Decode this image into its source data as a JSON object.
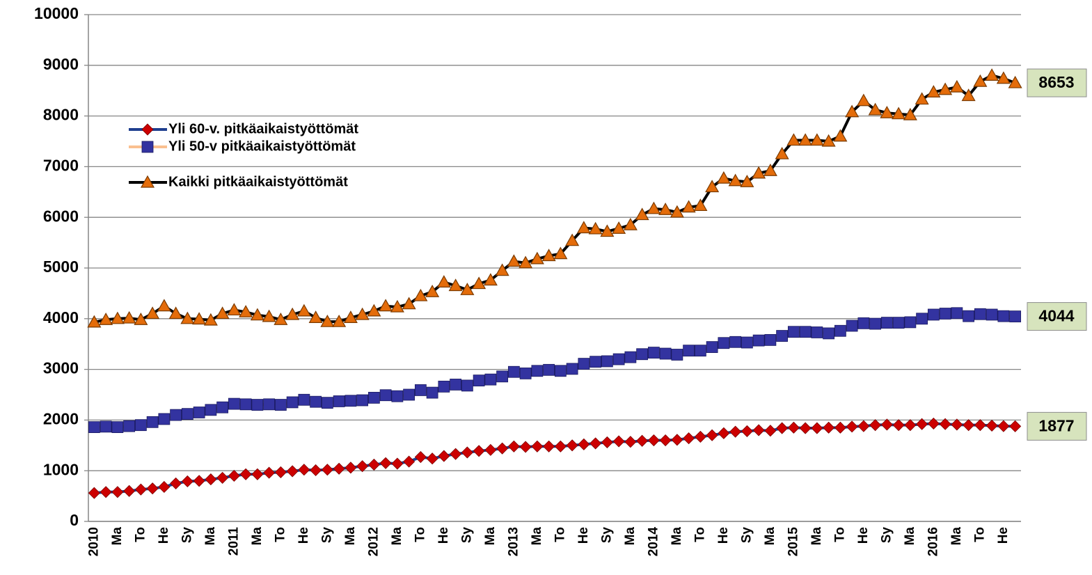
{
  "chart_data": {
    "type": "line",
    "categories": [
      "2010",
      null,
      "Ma",
      null,
      "To",
      null,
      "He",
      null,
      "Sy",
      null,
      "Ma",
      null,
      "2011",
      null,
      "Ma",
      null,
      "To",
      null,
      "He",
      null,
      "Sy",
      null,
      "Ma",
      null,
      "2012",
      null,
      "Ma",
      null,
      "To",
      null,
      "He",
      null,
      "Sy",
      null,
      "Ma",
      null,
      "2013",
      null,
      "Ma",
      null,
      "To",
      null,
      "He",
      null,
      "Sy",
      null,
      "Ma",
      null,
      "2014",
      null,
      "Ma",
      null,
      "To",
      null,
      "He",
      null,
      "Sy",
      null,
      "Ma",
      null,
      "2015",
      null,
      "Ma",
      null,
      "To",
      null,
      "He",
      null,
      "Sy",
      null,
      "Ma",
      null,
      "2016",
      null,
      "Ma",
      null,
      "To",
      null,
      "He",
      null
    ],
    "series": [
      {
        "name": "Yli 60-v. pitkäaikaistyöttömät",
        "color": "#1f3f8f",
        "marker": "diamond",
        "marker_color": "#cc0000",
        "values": [
          560,
          580,
          580,
          600,
          630,
          650,
          680,
          750,
          790,
          800,
          830,
          860,
          900,
          930,
          930,
          960,
          970,
          990,
          1020,
          1010,
          1020,
          1040,
          1060,
          1090,
          1120,
          1150,
          1140,
          1180,
          1270,
          1240,
          1290,
          1330,
          1360,
          1390,
          1410,
          1440,
          1480,
          1470,
          1480,
          1480,
          1480,
          1500,
          1520,
          1540,
          1560,
          1580,
          1570,
          1590,
          1600,
          1600,
          1610,
          1640,
          1670,
          1700,
          1740,
          1770,
          1780,
          1800,
          1790,
          1840,
          1850,
          1840,
          1840,
          1850,
          1850,
          1870,
          1880,
          1900,
          1910,
          1900,
          1900,
          1920,
          1930,
          1920,
          1910,
          1900,
          1900,
          1890,
          1880,
          1877
        ]
      },
      {
        "name": "Yli 50-v pitkäaikaistyöttömät",
        "color": "#fac090",
        "marker": "square",
        "marker_color": "#3333a0",
        "values": [
          1860,
          1870,
          1860,
          1880,
          1900,
          1960,
          2020,
          2100,
          2120,
          2150,
          2200,
          2250,
          2320,
          2310,
          2300,
          2310,
          2300,
          2350,
          2400,
          2360,
          2340,
          2370,
          2380,
          2390,
          2440,
          2490,
          2470,
          2500,
          2590,
          2540,
          2660,
          2700,
          2680,
          2780,
          2800,
          2860,
          2950,
          2920,
          2970,
          2990,
          2970,
          3010,
          3110,
          3150,
          3160,
          3200,
          3240,
          3300,
          3330,
          3310,
          3290,
          3370,
          3370,
          3440,
          3520,
          3540,
          3530,
          3570,
          3580,
          3660,
          3740,
          3740,
          3730,
          3710,
          3760,
          3860,
          3910,
          3900,
          3920,
          3920,
          3930,
          4000,
          4080,
          4100,
          4110,
          4050,
          4090,
          4080,
          4050,
          4044
        ]
      },
      {
        "name": "Kaikki pitkäaikaistyöttömät",
        "color": "#000000",
        "marker": "triangle",
        "marker_color": "#e46c0a",
        "values": [
          3930,
          3980,
          4000,
          4010,
          3980,
          4100,
          4250,
          4100,
          4000,
          3990,
          3970,
          4100,
          4170,
          4130,
          4070,
          4040,
          3980,
          4080,
          4150,
          4020,
          3940,
          3940,
          4020,
          4080,
          4150,
          4250,
          4230,
          4290,
          4450,
          4530,
          4720,
          4650,
          4570,
          4690,
          4760,
          4950,
          5130,
          5100,
          5180,
          5240,
          5280,
          5540,
          5790,
          5770,
          5720,
          5780,
          5850,
          6050,
          6170,
          6150,
          6100,
          6200,
          6230,
          6600,
          6770,
          6720,
          6700,
          6870,
          6920,
          7250,
          7520,
          7520,
          7520,
          7500,
          7600,
          8080,
          8300,
          8120,
          8060,
          8040,
          8020,
          8330,
          8470,
          8520,
          8570,
          8400,
          8680,
          8800,
          8740,
          8653
        ]
      }
    ],
    "ylim": [
      0,
      10000
    ],
    "yticks": [
      0,
      1000,
      2000,
      3000,
      4000,
      5000,
      6000,
      7000,
      8000,
      9000,
      10000
    ],
    "grid": true
  }
}
